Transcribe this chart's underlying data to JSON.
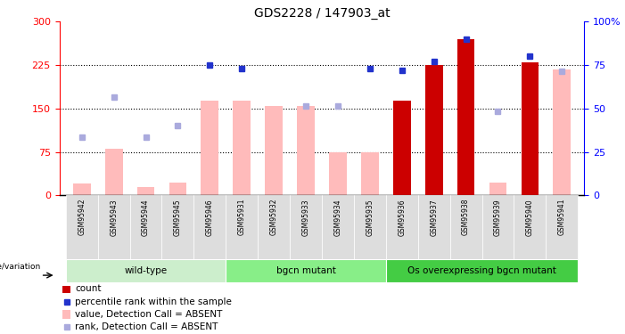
{
  "title": "GDS2228 / 147903_at",
  "samples": [
    "GSM95942",
    "GSM95943",
    "GSM95944",
    "GSM95945",
    "GSM95946",
    "GSM95931",
    "GSM95932",
    "GSM95933",
    "GSM95934",
    "GSM95935",
    "GSM95936",
    "GSM95937",
    "GSM95938",
    "GSM95939",
    "GSM95940",
    "GSM95941"
  ],
  "groups": [
    {
      "label": "wild-type",
      "facecolor": "#cceecc",
      "start": 0,
      "end": 5
    },
    {
      "label": "bgcn mutant",
      "facecolor": "#88dd88",
      "start": 5,
      "end": 10
    },
    {
      "label": "Os overexpressing bgcn mutant",
      "facecolor": "#44cc44",
      "start": 10,
      "end": 16
    }
  ],
  "value_absent": [
    20,
    80,
    15,
    22,
    163,
    163,
    155,
    155,
    75,
    75,
    163,
    null,
    null,
    22,
    null,
    218
  ],
  "rank_absent": [
    100,
    170,
    100,
    120,
    null,
    null,
    null,
    155,
    155,
    null,
    null,
    null,
    null,
    145,
    null,
    215
  ],
  "count": [
    null,
    null,
    null,
    null,
    null,
    null,
    null,
    null,
    null,
    null,
    163,
    225,
    270,
    null,
    230,
    null
  ],
  "percentile_pct": [
    null,
    null,
    null,
    null,
    75,
    73,
    null,
    null,
    null,
    73,
    72,
    77,
    90,
    null,
    80,
    null
  ],
  "left_ylim": [
    0,
    300
  ],
  "right_ylim": [
    0,
    100
  ],
  "left_yticks": [
    0,
    75,
    150,
    225,
    300
  ],
  "right_yticks": [
    0,
    25,
    50,
    75,
    100
  ],
  "right_yticklabels": [
    "0",
    "25",
    "50",
    "75",
    "100%"
  ],
  "color_count": "#cc0000",
  "color_percentile": "#2233cc",
  "color_value_absent": "#ffbbbb",
  "color_rank_absent": "#aaaadd",
  "genotype_label": "genotype/variation",
  "legend_items": [
    {
      "label": "count",
      "color": "#cc0000",
      "type": "bar"
    },
    {
      "label": "percentile rank within the sample",
      "color": "#2233cc",
      "type": "square"
    },
    {
      "label": "value, Detection Call = ABSENT",
      "color": "#ffbbbb",
      "type": "bar"
    },
    {
      "label": "rank, Detection Call = ABSENT",
      "color": "#aaaadd",
      "type": "square"
    }
  ]
}
